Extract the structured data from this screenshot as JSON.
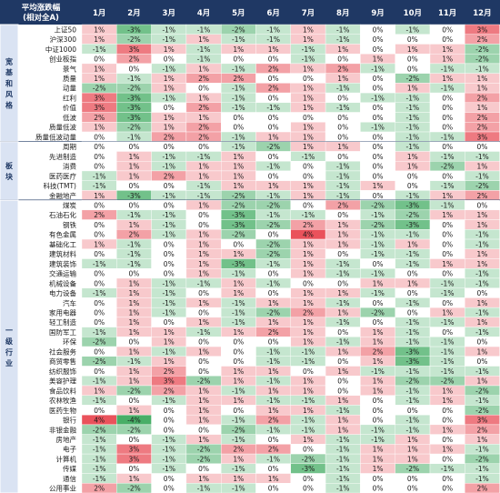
{
  "chart_data": {
    "type": "heatmap",
    "header": {
      "line1": "平均涨跌幅",
      "line2": "(相对全A)"
    },
    "months": [
      "1月",
      "2月",
      "3月",
      "4月",
      "5月",
      "6月",
      "7月",
      "8月",
      "9月",
      "10月",
      "11月",
      "12月"
    ],
    "colors": {
      "header_bg": "#1f3864",
      "group_bg": "#dae3f3",
      "positive": "#e8454f",
      "negative": "#3aa85c",
      "neutral": "#ffffff"
    },
    "groups": [
      {
        "name": "宽基和风格",
        "rows": [
          {
            "label": "上证50",
            "values": [
              1,
              -3,
              -1,
              -1,
              -2,
              -1,
              1,
              -1,
              0,
              -1,
              0,
              3
            ]
          },
          {
            "label": "沪深300",
            "values": [
              1,
              -2,
              -1,
              1,
              -1,
              -1,
              1,
              -1,
              0,
              0,
              0,
              2
            ]
          },
          {
            "label": "中证1000",
            "values": [
              -1,
              3,
              1,
              -1,
              1,
              1,
              -1,
              1,
              0,
              1,
              1,
              -2
            ]
          },
          {
            "label": "创业板指",
            "values": [
              0,
              2,
              0,
              -1,
              0,
              0,
              -1,
              0,
              1,
              0,
              1,
              -2
            ]
          },
          {
            "label": "景气",
            "values": [
              1,
              0,
              -1,
              1,
              -1,
              2,
              1,
              2,
              -1,
              0,
              -1,
              -1
            ]
          },
          {
            "label": "质量",
            "values": [
              1,
              -1,
              1,
              2,
              2,
              0,
              0,
              1,
              0,
              -2,
              1,
              1
            ]
          },
          {
            "label": "动量",
            "values": [
              -2,
              -2,
              1,
              0,
              -1,
              2,
              1,
              -1,
              0,
              1,
              -1,
              1
            ]
          },
          {
            "label": "红利",
            "values": [
              3,
              -3,
              -1,
              1,
              -1,
              0,
              1,
              0,
              -1,
              -1,
              0,
              2
            ]
          },
          {
            "label": "价值",
            "values": [
              3,
              -3,
              0,
              2,
              -1,
              -1,
              1,
              -1,
              0,
              -1,
              0,
              1
            ]
          },
          {
            "label": "低波",
            "values": [
              2,
              -3,
              1,
              1,
              0,
              0,
              0,
              0,
              0,
              -1,
              0,
              2
            ]
          },
          {
            "label": "质量低波",
            "values": [
              1,
              -2,
              1,
              2,
              0,
              0,
              1,
              0,
              -1,
              -1,
              0,
              2
            ]
          },
          {
            "label": "质量低波动量",
            "values": [
              0,
              -1,
              2,
              2,
              -1,
              1,
              1,
              0,
              0,
              -1,
              -1,
              3
            ]
          }
        ]
      },
      {
        "name": "板块",
        "rows": [
          {
            "label": "周期",
            "values": [
              0,
              0,
              0,
              0,
              -1,
              -2,
              1,
              1,
              0,
              -1,
              0,
              0
            ]
          },
          {
            "label": "先进制造",
            "values": [
              0,
              1,
              -1,
              -1,
              1,
              0,
              -1,
              0,
              0,
              1,
              -1,
              -1
            ]
          },
          {
            "label": "消费",
            "values": [
              0,
              1,
              -1,
              1,
              1,
              -1,
              0,
              -1,
              0,
              1,
              -2,
              1
            ]
          },
          {
            "label": "医药医疗",
            "values": [
              -1,
              1,
              2,
              1,
              1,
              0,
              0,
              -1,
              0,
              0,
              0,
              -1
            ]
          },
          {
            "label": "科技(TMT)",
            "values": [
              -1,
              0,
              0,
              -1,
              1,
              1,
              1,
              -1,
              1,
              0,
              -1,
              -2
            ]
          },
          {
            "label": "金融地产",
            "values": [
              1,
              -3,
              -1,
              -1,
              -2,
              -1,
              1,
              -1,
              0,
              -1,
              1,
              2
            ]
          }
        ]
      },
      {
        "name": "一级行业",
        "rows": [
          {
            "label": "煤炭",
            "values": [
              0,
              0,
              0,
              1,
              -2,
              -2,
              0,
              2,
              -2,
              -3,
              -1,
              0
            ]
          },
          {
            "label": "石油石化",
            "values": [
              2,
              -1,
              -1,
              0,
              -3,
              -1,
              -1,
              0,
              -1,
              -2,
              1,
              1
            ]
          },
          {
            "label": "钢铁",
            "values": [
              0,
              1,
              -1,
              0,
              -3,
              -2,
              2,
              1,
              -2,
              -3,
              0,
              1
            ]
          },
          {
            "label": "有色金属",
            "values": [
              0,
              2,
              -1,
              1,
              -2,
              0,
              4,
              1,
              -1,
              -1,
              0,
              -1
            ]
          },
          {
            "label": "基础化工",
            "values": [
              1,
              -1,
              0,
              1,
              0,
              -2,
              1,
              1,
              -1,
              1,
              0,
              -1
            ]
          },
          {
            "label": "建筑材料",
            "values": [
              0,
              -1,
              0,
              1,
              1,
              -2,
              1,
              0,
              -1,
              -1,
              0,
              1
            ]
          },
          {
            "label": "建筑装饰",
            "values": [
              -1,
              -1,
              0,
              1,
              -3,
              -1,
              1,
              -1,
              0,
              -1,
              1,
              1
            ]
          },
          {
            "label": "交通运输",
            "values": [
              0,
              0,
              0,
              1,
              -1,
              0,
              1,
              -1,
              -1,
              0,
              0,
              -1
            ]
          },
          {
            "label": "机械设备",
            "values": [
              0,
              1,
              -1,
              -1,
              1,
              -1,
              0,
              0,
              1,
              1,
              -1,
              -1
            ]
          },
          {
            "label": "电力设备",
            "values": [
              -1,
              1,
              -1,
              0,
              1,
              0,
              1,
              1,
              -1,
              0,
              -1,
              0
            ]
          },
          {
            "label": "汽车",
            "values": [
              0,
              1,
              -1,
              1,
              -1,
              1,
              1,
              -1,
              0,
              -1,
              0,
              1
            ]
          },
          {
            "label": "家用电器",
            "values": [
              0,
              1,
              -1,
              0,
              -1,
              -2,
              2,
              1,
              -2,
              0,
              1,
              -1
            ]
          },
          {
            "label": "轻工制造",
            "values": [
              0,
              1,
              0,
              1,
              -1,
              1,
              1,
              -1,
              0,
              -1,
              -1,
              1
            ]
          },
          {
            "label": "国防军工",
            "values": [
              -1,
              1,
              1,
              -1,
              1,
              2,
              1,
              0,
              1,
              -1,
              0,
              -1
            ]
          },
          {
            "label": "环保",
            "values": [
              -2,
              0,
              1,
              0,
              0,
              0,
              1,
              -1,
              1,
              -1,
              -1,
              0
            ]
          },
          {
            "label": "社会服务",
            "values": [
              0,
              1,
              -1,
              1,
              0,
              -1,
              -1,
              1,
              2,
              -3,
              -1,
              1
            ]
          },
          {
            "label": "商贸零售",
            "values": [
              -2,
              -1,
              1,
              0,
              0,
              -1,
              -1,
              0,
              1,
              -3,
              -1,
              0
            ]
          },
          {
            "label": "纺织服饰",
            "values": [
              0,
              1,
              2,
              0,
              1,
              1,
              0,
              1,
              -1,
              -1,
              -1,
              -1
            ]
          },
          {
            "label": "美容护理",
            "values": [
              -1,
              1,
              3,
              -2,
              1,
              -1,
              1,
              0,
              1,
              -2,
              -2,
              1
            ]
          },
          {
            "label": "食品饮料",
            "values": [
              1,
              -2,
              2,
              1,
              -1,
              1,
              1,
              0,
              1,
              -1,
              1,
              -2
            ]
          },
          {
            "label": "农林牧渔",
            "values": [
              -1,
              0,
              -1,
              1,
              1,
              -1,
              -1,
              1,
              0,
              -1,
              1,
              -1
            ]
          },
          {
            "label": "医药生物",
            "values": [
              0,
              1,
              0,
              1,
              0,
              1,
              1,
              -1,
              0,
              0,
              0,
              -2
            ]
          },
          {
            "label": "银行",
            "values": [
              4,
              -4,
              0,
              1,
              -1,
              2,
              -1,
              1,
              0,
              -1,
              0,
              3
            ]
          },
          {
            "label": "非银金融",
            "values": [
              -2,
              -2,
              0,
              0,
              -2,
              -1,
              -1,
              1,
              -1,
              -1,
              1,
              2
            ]
          },
          {
            "label": "房地产",
            "values": [
              -1,
              0,
              -1,
              1,
              -1,
              0,
              1,
              -1,
              -1,
              1,
              0,
              1
            ]
          },
          {
            "label": "电子",
            "values": [
              -1,
              3,
              -1,
              -2,
              2,
              2,
              0,
              -1,
              1,
              1,
              1,
              -1
            ]
          },
          {
            "label": "计算机",
            "values": [
              -1,
              3,
              -1,
              -2,
              1,
              -1,
              -2,
              -1,
              1,
              1,
              0,
              -2
            ]
          },
          {
            "label": "传媒",
            "values": [
              -1,
              0,
              -1,
              0,
              -1,
              0,
              -3,
              -1,
              1,
              -2,
              -1,
              -1
            ]
          },
          {
            "label": "通信",
            "values": [
              -1,
              1,
              0,
              1,
              1,
              1,
              0,
              -1,
              0,
              0,
              0,
              -1
            ]
          },
          {
            "label": "公用事业",
            "values": [
              2,
              -2,
              0,
              -1,
              -1,
              0,
              0,
              -1,
              0,
              0,
              0,
              2
            ]
          }
        ]
      }
    ]
  }
}
